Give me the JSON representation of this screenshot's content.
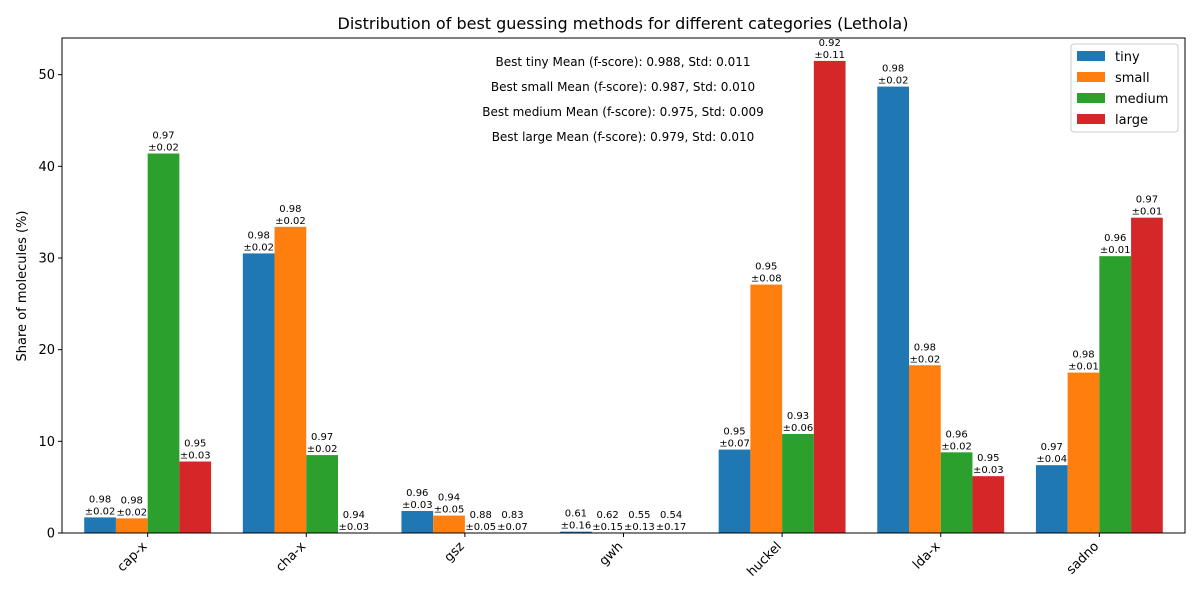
{
  "chart_data": {
    "type": "bar",
    "title": "Distribution of best guessing methods for different categories (Lethola)",
    "xlabel": "",
    "ylabel": "Share of molecules (%)",
    "ylim": [
      0,
      54
    ],
    "yticks": [
      0,
      10,
      20,
      30,
      40,
      50
    ],
    "grid": false,
    "legend_position": "top-right",
    "categories": [
      "cap-x",
      "cha-x",
      "gsz",
      "gwh",
      "huckel",
      "lda-x",
      "sadno"
    ],
    "series": [
      {
        "name": "tiny",
        "color": "#1f77b4",
        "values": [
          1.7,
          30.5,
          2.4,
          0.15,
          9.1,
          48.7,
          7.4
        ],
        "labels": [
          "0.98\n±0.02",
          "0.98\n±0.02",
          "0.96\n±0.03",
          "0.61\n±0.16",
          "0.95\n±0.07",
          "0.98\n±0.02",
          "0.97\n±0.04"
        ]
      },
      {
        "name": "small",
        "color": "#ff7f0e",
        "values": [
          1.6,
          33.4,
          1.9,
          0.0,
          27.1,
          18.3,
          17.5
        ],
        "labels": [
          "0.98\n±0.02",
          "0.98\n±0.02",
          "0.94\n±0.05",
          "0.62\n±0.15",
          "0.95\n±0.08",
          "0.98\n±0.02",
          "0.98\n±0.01"
        ]
      },
      {
        "name": "medium",
        "color": "#2ca02c",
        "values": [
          41.4,
          8.5,
          0.0,
          0.0,
          10.8,
          8.8,
          30.2
        ],
        "labels": [
          "0.97\n±0.02",
          "0.97\n±0.02",
          "0.88\n±0.05",
          "0.55\n±0.13",
          "0.93\n±0.06",
          "0.96\n±0.02",
          "0.96\n±0.01"
        ]
      },
      {
        "name": "large",
        "color": "#d62728",
        "values": [
          7.8,
          0.0,
          0.0,
          0.0,
          51.5,
          6.2,
          34.4
        ],
        "labels": [
          "0.95\n±0.03",
          "0.94\n±0.03",
          "0.83\n±0.07",
          "0.54\n±0.17",
          "0.92\n±0.11",
          "0.95\n±0.03",
          "0.97\n±0.01"
        ]
      }
    ],
    "annotations": [
      "Best tiny Mean (f-score): 0.988, Std: 0.011",
      "Best small Mean (f-score): 0.987, Std: 0.010",
      "Best medium Mean (f-score): 0.975, Std: 0.009",
      "Best large Mean (f-score): 0.979, Std: 0.010"
    ]
  }
}
